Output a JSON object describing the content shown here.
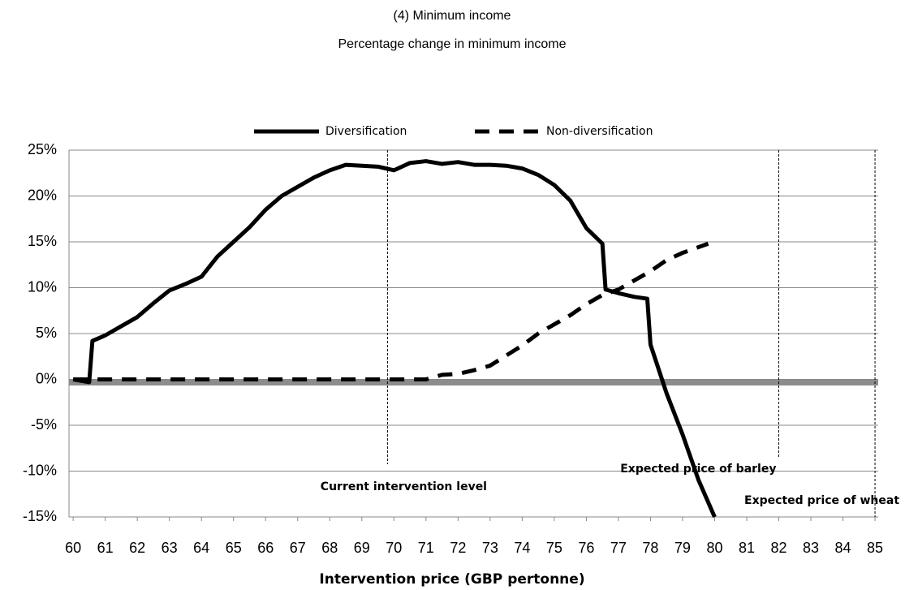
{
  "chart_data": {
    "type": "line",
    "title": "(4)  Minimum income",
    "subtitle": "Percentage change in minimum income",
    "x_label": "Intervention price (GBP pertonne)",
    "legend": "top",
    "grid": true,
    "xlim": [
      59.87,
      85.1
    ],
    "xticks": [
      60,
      61,
      62,
      63,
      64,
      65,
      66,
      67,
      68,
      69,
      70,
      71,
      72,
      73,
      74,
      75,
      76,
      77,
      78,
      79,
      80,
      81,
      82,
      83,
      84,
      85
    ],
    "ylim": [
      -15,
      25
    ],
    "yticks": [
      {
        "value": -15,
        "label": "-15%"
      },
      {
        "value": -10,
        "label": "-10%"
      },
      {
        "value": -5,
        "label": "-5%"
      },
      {
        "value": 0,
        "label": "0%"
      },
      {
        "value": 5,
        "label": "5%"
      },
      {
        "value": 10,
        "label": "10%"
      },
      {
        "value": 15,
        "label": "15%"
      },
      {
        "value": 20,
        "label": "20%"
      },
      {
        "value": 25,
        "label": "25%"
      }
    ],
    "series": [
      {
        "name": "Diversification",
        "color": "#000000",
        "dash": false,
        "x": [
          60,
          60.5,
          60.6,
          61,
          61.5,
          62,
          62.5,
          63,
          63.5,
          64,
          64.5,
          65,
          65.5,
          66,
          66.5,
          67,
          67.5,
          68,
          68.5,
          69,
          69.5,
          70,
          70.5,
          71,
          71.5,
          72,
          72.5,
          73,
          73.5,
          74,
          74.5,
          75,
          75.5,
          76,
          76.5,
          76.6,
          77,
          77.5,
          77.9,
          78,
          78.5,
          79,
          79.5,
          80
        ],
        "values": [
          0,
          -0.3,
          4.2,
          4.8,
          5.8,
          6.8,
          8.3,
          9.7,
          10.4,
          11.2,
          13.4,
          15,
          16.6,
          18.5,
          20,
          21,
          22,
          22.8,
          23.4,
          23.3,
          23.2,
          22.8,
          23.6,
          23.8,
          23.5,
          23.7,
          23.4,
          23.4,
          23.3,
          23,
          22.3,
          21.2,
          19.5,
          16.5,
          14.8,
          9.8,
          9.4,
          9,
          8.8,
          3.8,
          -1.5,
          -6,
          -11,
          -15
        ]
      },
      {
        "name": "Non-diversification",
        "color": "#000000",
        "dash": true,
        "x": [
          60,
          61,
          62,
          63,
          64,
          65,
          66,
          67,
          68,
          69,
          70,
          71,
          71.5,
          72,
          72.5,
          73,
          73.5,
          74,
          74.5,
          75,
          75.5,
          76,
          76.5,
          77,
          77.5,
          78,
          78.5,
          79,
          79.8
        ],
        "values": [
          0,
          0,
          0,
          0,
          0,
          0,
          0,
          0,
          0,
          0,
          0,
          0,
          0.5,
          0.6,
          1,
          1.5,
          2.6,
          3.7,
          5,
          6,
          7,
          8.2,
          9.2,
          9.8,
          10.8,
          11.8,
          13,
          13.8,
          14.8
        ]
      }
    ],
    "annotations": [
      {
        "text": "Current intervention level",
        "x": 69.8
      },
      {
        "text": "Expected price of barley",
        "x": 82
      },
      {
        "text": "Expected price of wheat",
        "x": 85
      }
    ]
  }
}
